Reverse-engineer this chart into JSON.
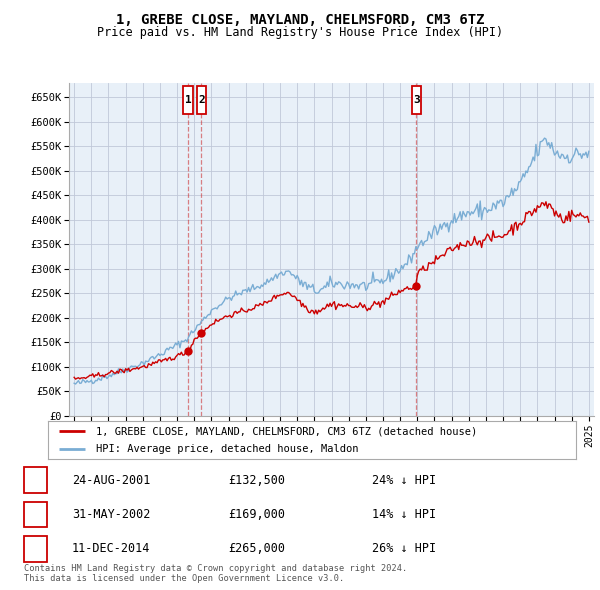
{
  "title": "1, GREBE CLOSE, MAYLAND, CHELMSFORD, CM3 6TZ",
  "subtitle": "Price paid vs. HM Land Registry's House Price Index (HPI)",
  "legend_property": "1, GREBE CLOSE, MAYLAND, CHELMSFORD, CM3 6TZ (detached house)",
  "legend_hpi": "HPI: Average price, detached house, Maldon",
  "footer_line1": "Contains HM Land Registry data © Crown copyright and database right 2024.",
  "footer_line2": "This data is licensed under the Open Government Licence v3.0.",
  "sales": [
    {
      "num": 1,
      "date": "24-AUG-2001",
      "price": 132500,
      "pct": "24% ↓ HPI"
    },
    {
      "num": 2,
      "date": "31-MAY-2002",
      "price": 169000,
      "pct": "14% ↓ HPI"
    },
    {
      "num": 3,
      "date": "11-DEC-2014",
      "price": 265000,
      "pct": "26% ↓ HPI"
    }
  ],
  "sale_dates_decimal": [
    2001.648,
    2002.414,
    2014.942
  ],
  "property_color": "#cc0000",
  "hpi_color": "#7aadd4",
  "chart_bg": "#e8f0f8",
  "grid_color": "#c0c8d8",
  "ylim": [
    0,
    680000
  ],
  "xlim_start": 1994.7,
  "xlim_end": 2025.3,
  "yticks": [
    0,
    50000,
    100000,
    150000,
    200000,
    250000,
    300000,
    350000,
    400000,
    450000,
    500000,
    550000,
    600000,
    650000
  ],
  "ytick_labels": [
    "£0",
    "£50K",
    "£100K",
    "£150K",
    "£200K",
    "£250K",
    "£300K",
    "£350K",
    "£400K",
    "£450K",
    "£500K",
    "£550K",
    "£600K",
    "£650K"
  ],
  "xticks": [
    1995,
    1996,
    1997,
    1998,
    1999,
    2000,
    2001,
    2002,
    2003,
    2004,
    2005,
    2006,
    2007,
    2008,
    2009,
    2010,
    2011,
    2012,
    2013,
    2014,
    2015,
    2016,
    2017,
    2018,
    2019,
    2020,
    2021,
    2022,
    2023,
    2024,
    2025
  ]
}
